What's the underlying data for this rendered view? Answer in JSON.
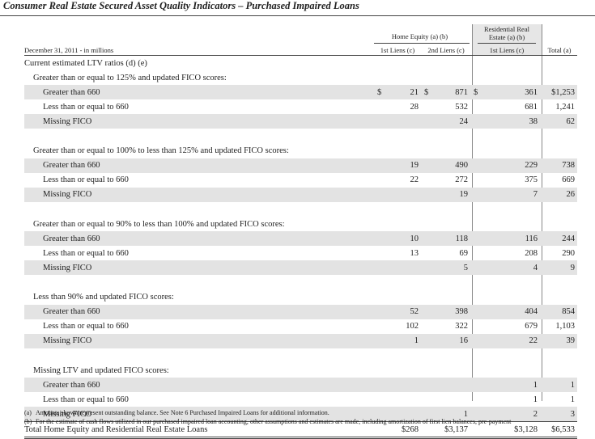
{
  "title": "Consumer Real Estate Secured Asset Quality Indicators – Purchased Impaired Loans",
  "header": {
    "date_label": "December 31, 2011 - in millions",
    "group_home_equity": "Home Equity (a) (b)",
    "group_residential_line1": "Residential Real",
    "group_residential_line2": "Estate (a) (b)",
    "col_he_1st": "1st Liens (c)",
    "col_he_2nd": "2nd Liens (c)",
    "col_rre_1st": "1st Liens (c)",
    "col_total": "Total (a)"
  },
  "rows": [
    {
      "label": "Current estimated LTV ratios (d) (e)",
      "level": 0,
      "type": "head"
    },
    {
      "label": "Greater than or equal to 125% and updated FICO scores:",
      "level": 1,
      "type": "head"
    },
    {
      "label": "Greater than 660",
      "level": 2,
      "type": "data",
      "shade": true,
      "he1": "21",
      "he2": "871",
      "rre": "361",
      "total": "$1,253",
      "dollar": true
    },
    {
      "label": "Less than or equal to 660",
      "level": 2,
      "type": "data",
      "shade": false,
      "he1": "28",
      "he2": "532",
      "rre": "681",
      "total": "1,241"
    },
    {
      "label": "Missing FICO",
      "level": 2,
      "type": "data",
      "shade": true,
      "he1": "",
      "he2": "24",
      "rre": "38",
      "total": "62"
    },
    {
      "label": "",
      "level": 0,
      "type": "spacer"
    },
    {
      "label": "Greater than or equal to 100% to less than 125% and updated FICO scores:",
      "level": 1,
      "type": "head"
    },
    {
      "label": "Greater than 660",
      "level": 2,
      "type": "data",
      "shade": true,
      "he1": "19",
      "he2": "490",
      "rre": "229",
      "total": "738"
    },
    {
      "label": "Less than or equal to 660",
      "level": 2,
      "type": "data",
      "shade": false,
      "he1": "22",
      "he2": "272",
      "rre": "375",
      "total": "669"
    },
    {
      "label": "Missing FICO",
      "level": 2,
      "type": "data",
      "shade": true,
      "he1": "",
      "he2": "19",
      "rre": "7",
      "total": "26"
    },
    {
      "label": "",
      "level": 0,
      "type": "spacer"
    },
    {
      "label": "Greater than or equal to 90% to less than 100% and updated FICO scores:",
      "level": 1,
      "type": "head"
    },
    {
      "label": "Greater than 660",
      "level": 2,
      "type": "data",
      "shade": true,
      "he1": "10",
      "he2": "118",
      "rre": "116",
      "total": "244"
    },
    {
      "label": "Less than or equal to 660",
      "level": 2,
      "type": "data",
      "shade": false,
      "he1": "13",
      "he2": "69",
      "rre": "208",
      "total": "290"
    },
    {
      "label": "Missing FICO",
      "level": 2,
      "type": "data",
      "shade": true,
      "he1": "",
      "he2": "5",
      "rre": "4",
      "total": "9"
    },
    {
      "label": "",
      "level": 0,
      "type": "spacer"
    },
    {
      "label": "Less than 90% and updated FICO scores:",
      "level": 1,
      "type": "head"
    },
    {
      "label": "Greater than 660",
      "level": 2,
      "type": "data",
      "shade": true,
      "he1": "52",
      "he2": "398",
      "rre": "404",
      "total": "854"
    },
    {
      "label": "Less than or equal to 660",
      "level": 2,
      "type": "data",
      "shade": false,
      "he1": "102",
      "he2": "322",
      "rre": "679",
      "total": "1,103"
    },
    {
      "label": "Missing FICO",
      "level": 2,
      "type": "data",
      "shade": true,
      "he1": "1",
      "he2": "16",
      "rre": "22",
      "total": "39"
    },
    {
      "label": "",
      "level": 0,
      "type": "spacer"
    },
    {
      "label": "Missing LTV and updated FICO scores:",
      "level": 1,
      "type": "head"
    },
    {
      "label": "Greater than 660",
      "level": 2,
      "type": "data",
      "shade": true,
      "he1": "",
      "he2": "",
      "rre": "1",
      "total": "1"
    },
    {
      "label": "Less than or equal to 660",
      "level": 2,
      "type": "data",
      "shade": false,
      "he1": "",
      "he2": "",
      "rre": "1",
      "total": "1"
    },
    {
      "label": "Missing FICO",
      "level": 2,
      "type": "data",
      "shade": true,
      "he1": "",
      "he2": "1",
      "rre": "2",
      "total": "3"
    },
    {
      "label": "Total Home Equity and Residential Real Estate Loans",
      "level": 0,
      "type": "total",
      "he1": "$268",
      "he2": "$3,137",
      "rre": "$3,128",
      "total": "$6,533"
    }
  ],
  "footnotes": [
    {
      "mark": "(a)",
      "text": "Amounts shown represent outstanding balance. See Note 6 Purchased Impaired Loans for additional information."
    },
    {
      "mark": "(b)",
      "text": "For the estimate of cash flows utilized in our purchased impaired loan accounting, other assumptions and estimates are made, including amortization of first lien balances, pre-payment"
    }
  ]
}
